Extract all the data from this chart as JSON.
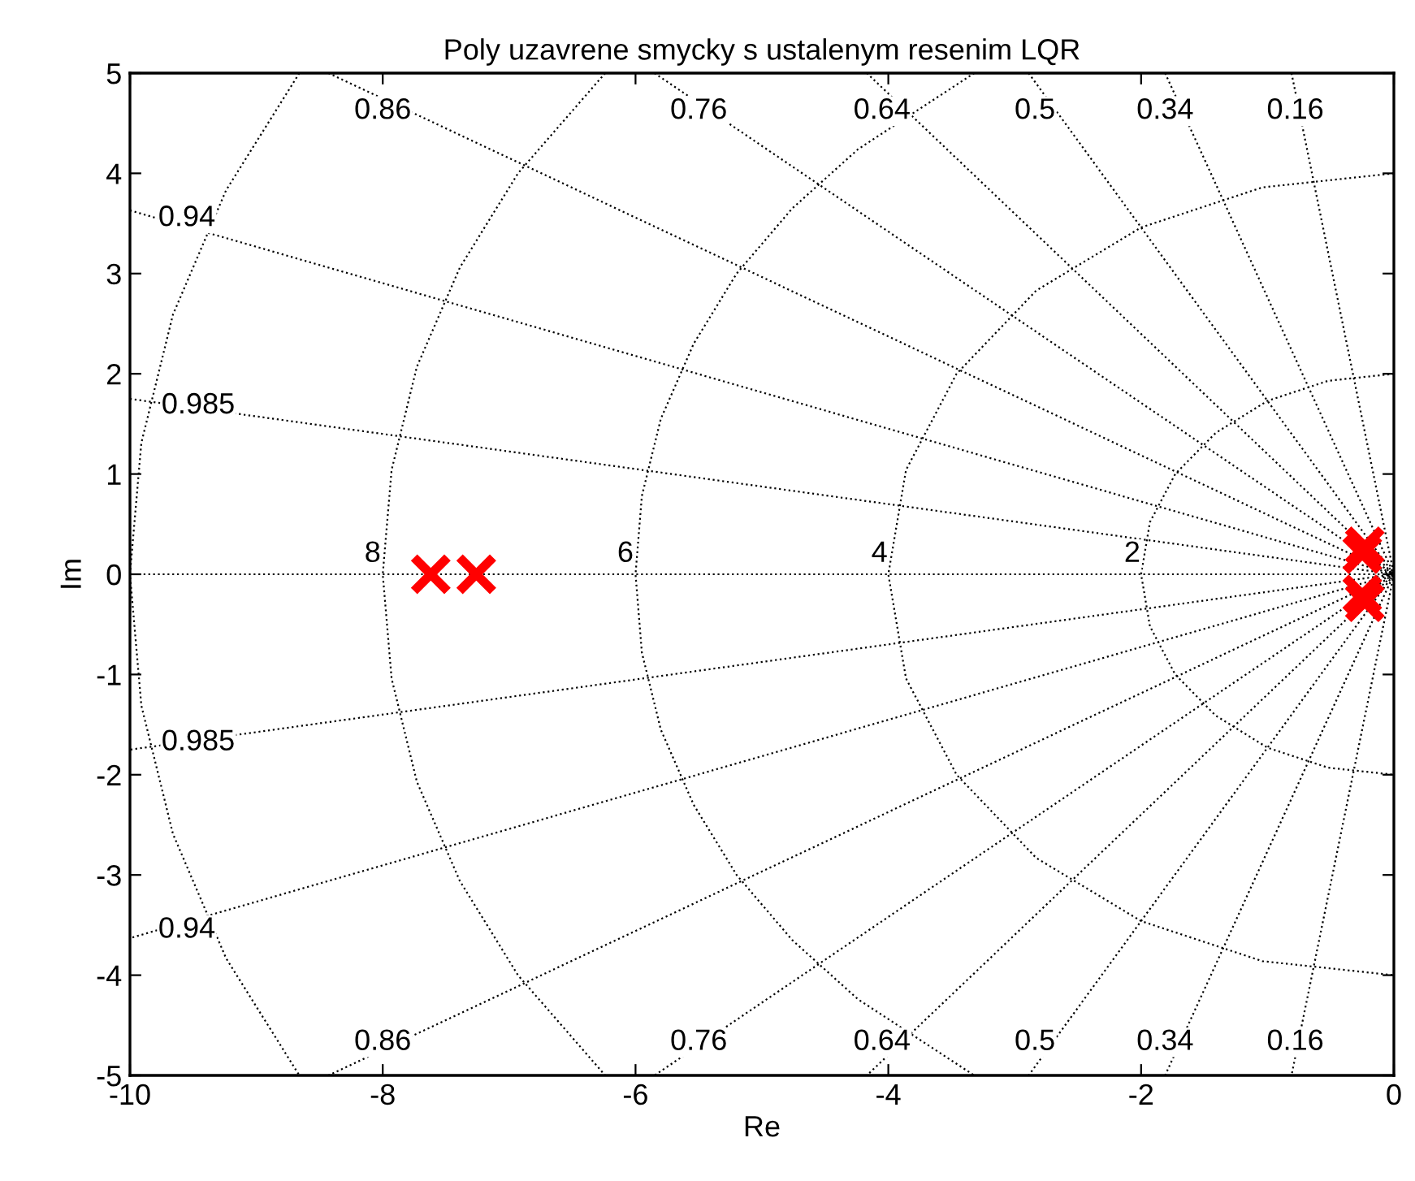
{
  "chart_data": {
    "type": "scatter",
    "title": "Poly uzavrene smycky s ustalenym resenim LQR",
    "xlabel": "Re",
    "ylabel": "Im",
    "xlim": [
      -10,
      0
    ],
    "ylim": [
      -5,
      5
    ],
    "xticks": [
      -10,
      -8,
      -6,
      -4,
      -2,
      0
    ],
    "yticks": [
      -5,
      -4,
      -3,
      -2,
      -1,
      0,
      1,
      2,
      3,
      4,
      5
    ],
    "grid": false,
    "series": [
      {
        "type": "line",
        "color": "#000000",
        "line_style": "dotted",
        "marker": "none",
        "x": [
          -0.81,
          0,
          -0.81
        ],
        "values": [
          5,
          0,
          -5
        ]
      },
      {
        "type": "line",
        "color": "#000000",
        "line_style": "dotted",
        "marker": "none",
        "x": [
          -1.81,
          0,
          -1.81
        ],
        "values": [
          5,
          0,
          -5
        ]
      },
      {
        "type": "line",
        "color": "#000000",
        "line_style": "dotted",
        "marker": "none",
        "x": [
          -2.89,
          0,
          -2.89
        ],
        "values": [
          5,
          0,
          -5
        ]
      },
      {
        "type": "line",
        "color": "#000000",
        "line_style": "dotted",
        "marker": "none",
        "x": [
          -4.17,
          0,
          -4.17
        ],
        "values": [
          5,
          0,
          -5
        ]
      },
      {
        "type": "line",
        "color": "#000000",
        "line_style": "dotted",
        "marker": "none",
        "x": [
          -5.85,
          0,
          -5.85
        ],
        "values": [
          5,
          0,
          -5
        ]
      },
      {
        "type": "line",
        "color": "#000000",
        "line_style": "dotted",
        "marker": "none",
        "x": [
          -8.43,
          0,
          -8.43
        ],
        "values": [
          5,
          0,
          -5
        ]
      },
      {
        "type": "line",
        "color": "#000000",
        "line_style": "dotted",
        "marker": "none",
        "x": [
          -10,
          0,
          -10
        ],
        "values": [
          3.63,
          0,
          -3.63
        ]
      },
      {
        "type": "line",
        "color": "#000000",
        "line_style": "dotted",
        "marker": "none",
        "x": [
          -10,
          0,
          -10
        ],
        "values": [
          1.75,
          0,
          -1.75
        ]
      },
      {
        "type": "line",
        "color": "#000000",
        "line_style": "dotted",
        "marker": "none",
        "x": [
          0,
          -10
        ],
        "values": [
          0,
          0
        ]
      },
      {
        "type": "line",
        "color": "#000000",
        "line_style": "dotted",
        "marker": "none",
        "x": [
          0,
          -0.52,
          -1,
          -1.41,
          -1.73,
          -1.93,
          -2,
          -1.93,
          -1.73,
          -1.41,
          -1,
          -0.52,
          0
        ],
        "values": [
          2,
          1.93,
          1.73,
          1.41,
          1,
          0.52,
          0,
          -0.52,
          -1,
          -1.41,
          -1.73,
          -1.93,
          -2
        ]
      },
      {
        "type": "line",
        "color": "#000000",
        "line_style": "dotted",
        "marker": "none",
        "x": [
          0,
          -1.04,
          -2,
          -2.83,
          -3.46,
          -3.86,
          -4,
          -3.86,
          -3.46,
          -2.83,
          -2,
          -1.04,
          0
        ],
        "values": [
          4,
          3.86,
          3.46,
          2.83,
          2,
          1.04,
          0,
          -1.04,
          -2,
          -2.83,
          -3.46,
          -3.86,
          -4
        ]
      },
      {
        "type": "line",
        "color": "#000000",
        "line_style": "dotted",
        "marker": "none",
        "x": [
          -3.32,
          -4.24,
          -4.76,
          -5.2,
          -5.54,
          -5.8,
          -5.95,
          -6,
          -5.95,
          -5.8,
          -5.54,
          -5.2,
          -4.76,
          -4.24,
          -3.32
        ],
        "values": [
          5,
          4.24,
          3.65,
          3,
          2.3,
          1.55,
          0.78,
          0,
          -0.78,
          -1.55,
          -2.3,
          -3,
          -3.65,
          -4.24,
          -5
        ]
      },
      {
        "type": "line",
        "color": "#000000",
        "line_style": "dotted",
        "marker": "none",
        "x": [
          -6.24,
          -6.93,
          -7.39,
          -7.73,
          -7.93,
          -8,
          -7.93,
          -7.73,
          -7.39,
          -6.93,
          -6.24
        ],
        "values": [
          5,
          4,
          3.06,
          2.07,
          1.04,
          0,
          -1.04,
          -2.07,
          -3.06,
          -4,
          -5
        ]
      },
      {
        "type": "line",
        "color": "#000000",
        "line_style": "dotted",
        "marker": "none",
        "x": [
          -8.66,
          -9.24,
          -9.66,
          -9.91,
          -10,
          -9.91,
          -9.66,
          -9.24,
          -8.66
        ],
        "values": [
          5,
          3.83,
          2.59,
          1.31,
          0,
          -1.31,
          -2.59,
          -3.83,
          -5
        ]
      },
      {
        "color": "#ff0000",
        "marker": "cross",
        "x": [
          -7.62,
          -7.26,
          -0.23,
          -0.25,
          -0.25,
          -0.23
        ],
        "values": [
          0,
          0,
          0.28,
          0.2,
          -0.2,
          -0.28
        ]
      }
    ],
    "annotations": [
      {
        "text": "0.86",
        "x": -8.0,
        "y": 4.62
      },
      {
        "text": "0.76",
        "x": -5.5,
        "y": 4.62
      },
      {
        "text": "0.64",
        "x": -4.05,
        "y": 4.62
      },
      {
        "text": "0.5",
        "x": -2.84,
        "y": 4.62
      },
      {
        "text": "0.34",
        "x": -1.81,
        "y": 4.62
      },
      {
        "text": "0.16",
        "x": -0.78,
        "y": 4.62
      },
      {
        "text": "0.94",
        "x": -9.55,
        "y": 3.55
      },
      {
        "text": "0.985",
        "x": -9.46,
        "y": 1.68
      },
      {
        "text": "0.985",
        "x": -9.46,
        "y": -1.68
      },
      {
        "text": "0.94",
        "x": -9.55,
        "y": -3.55
      },
      {
        "text": "0.86",
        "x": -8.0,
        "y": -4.67
      },
      {
        "text": "0.76",
        "x": -5.5,
        "y": -4.67
      },
      {
        "text": "0.64",
        "x": -4.05,
        "y": -4.67
      },
      {
        "text": "0.5",
        "x": -2.84,
        "y": -4.67
      },
      {
        "text": "0.34",
        "x": -1.81,
        "y": -4.67
      },
      {
        "text": "0.16",
        "x": -0.78,
        "y": -4.67
      },
      {
        "text": "8",
        "x": -8.08,
        "y": 0.2
      },
      {
        "text": "6",
        "x": -6.08,
        "y": 0.2
      },
      {
        "text": "4",
        "x": -4.07,
        "y": 0.2
      },
      {
        "text": "2",
        "x": -2.07,
        "y": 0.2
      }
    ]
  }
}
